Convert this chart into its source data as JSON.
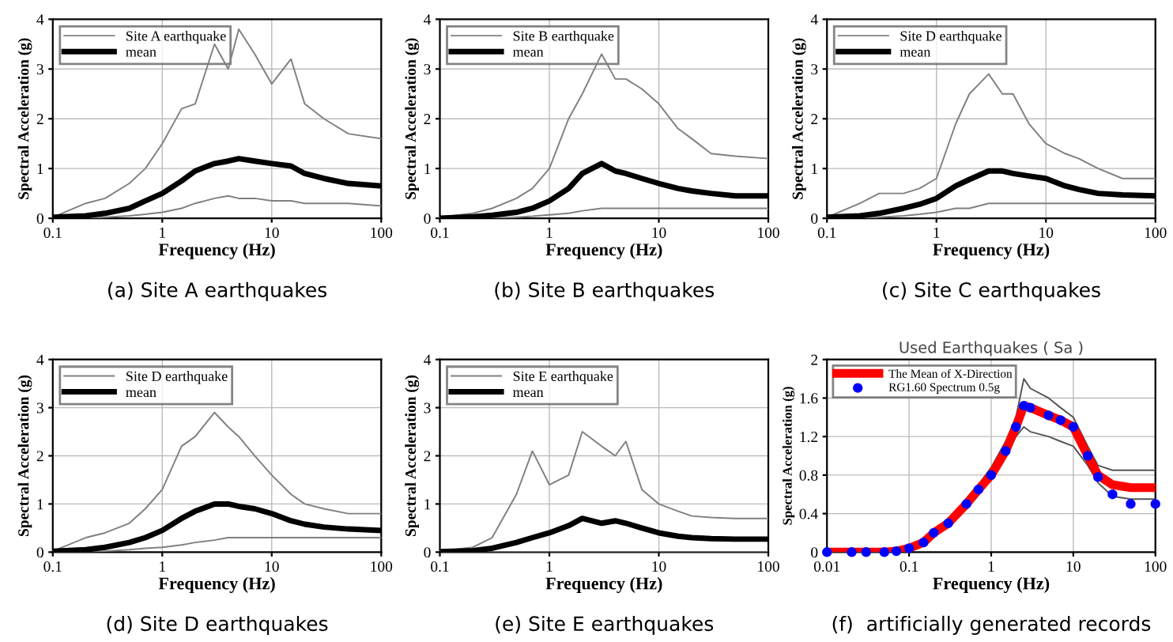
{
  "chart_data": [
    {
      "type": "line",
      "xlabel": "Frequency (Hz)",
      "ylabel": "Spectral Acceleration (g)",
      "annotations": [
        "(a) Site A earthquakes"
      ],
      "log": "x",
      "xlim": [
        0.1,
        100
      ],
      "xticks": [
        0.1,
        1,
        10,
        100
      ],
      "ylim": [
        0,
        4
      ],
      "yticks": [
        0,
        1,
        2,
        3,
        4
      ],
      "grid": true,
      "legend": "top left",
      "x": [
        0.1,
        0.2,
        0.3,
        0.5,
        0.7,
        1,
        1.5,
        2,
        3,
        4,
        5,
        7,
        10,
        15,
        20,
        30,
        50,
        100
      ],
      "series": [
        {
          "name": "Site A earthquake",
          "color": "#808080",
          "values": [
            0.02,
            0.3,
            0.4,
            0.7,
            1.0,
            1.5,
            2.2,
            2.3,
            3.5,
            3.0,
            3.8,
            3.3,
            2.7,
            3.2,
            2.3,
            2.0,
            1.7,
            1.6
          ]
        },
        {
          "color": "#808080",
          "values": [
            0,
            0,
            0.02,
            0.05,
            0.08,
            0.12,
            0.2,
            0.3,
            0.4,
            0.45,
            0.4,
            0.4,
            0.35,
            0.35,
            0.3,
            0.3,
            0.3,
            0.25
          ]
        },
        {
          "name": "mean",
          "color": "#000000",
          "values": [
            0.02,
            0.05,
            0.1,
            0.2,
            0.35,
            0.5,
            0.75,
            0.95,
            1.1,
            1.15,
            1.2,
            1.15,
            1.1,
            1.05,
            0.9,
            0.8,
            0.7,
            0.65
          ]
        }
      ]
    },
    {
      "type": "line",
      "xlabel": "Frequency (Hz)",
      "ylabel": "Spectral Acceleration (g)",
      "annotations": [
        "(b) Site B earthquakes"
      ],
      "log": "x",
      "xlim": [
        0.1,
        100
      ],
      "xticks": [
        0.1,
        1,
        10,
        100
      ],
      "ylim": [
        0,
        4
      ],
      "yticks": [
        0,
        1,
        2,
        3,
        4
      ],
      "grid": true,
      "legend": "top left",
      "x": [
        0.1,
        0.2,
        0.3,
        0.5,
        0.7,
        1,
        1.5,
        2,
        3,
        4,
        5,
        7,
        10,
        15,
        20,
        30,
        50,
        100
      ],
      "series": [
        {
          "name": "Site B earthquake",
          "color": "#808080",
          "values": [
            0.02,
            0.1,
            0.2,
            0.4,
            0.6,
            1.0,
            2.0,
            2.5,
            3.3,
            2.8,
            2.8,
            2.6,
            2.3,
            1.8,
            1.6,
            1.3,
            1.25,
            1.2
          ]
        },
        {
          "color": "#808080",
          "values": [
            0,
            0,
            0,
            0.02,
            0.04,
            0.07,
            0.1,
            0.15,
            0.2,
            0.2,
            0.2,
            0.2,
            0.2,
            0.2,
            0.2,
            0.2,
            0.2,
            0.2
          ]
        },
        {
          "name": "mean",
          "color": "#000000",
          "values": [
            0,
            0.03,
            0.06,
            0.12,
            0.2,
            0.35,
            0.6,
            0.9,
            1.1,
            0.95,
            0.9,
            0.8,
            0.7,
            0.6,
            0.55,
            0.5,
            0.45,
            0.45
          ]
        }
      ]
    },
    {
      "type": "line",
      "xlabel": "Frequency (Hz)",
      "ylabel": "Spectral Acceleration (g)",
      "annotations": [
        "(c) Site C earthquakes"
      ],
      "log": "x",
      "xlim": [
        0.1,
        100
      ],
      "xticks": [
        0.1,
        1,
        10,
        100
      ],
      "ylim": [
        0,
        4
      ],
      "yticks": [
        0,
        1,
        2,
        3,
        4
      ],
      "grid": true,
      "legend": "top left",
      "x": [
        0.1,
        0.2,
        0.3,
        0.5,
        0.7,
        1,
        1.5,
        2,
        3,
        4,
        5,
        7,
        10,
        15,
        20,
        30,
        50,
        100
      ],
      "series": [
        {
          "name": "Site D earthquake",
          "color": "#808080",
          "values": [
            0.02,
            0.3,
            0.5,
            0.5,
            0.6,
            0.8,
            1.9,
            2.5,
            2.9,
            2.5,
            2.5,
            1.9,
            1.5,
            1.3,
            1.2,
            1.0,
            0.8,
            0.8
          ]
        },
        {
          "color": "#808080",
          "values": [
            0,
            0,
            0.02,
            0.05,
            0.08,
            0.12,
            0.2,
            0.2,
            0.3,
            0.3,
            0.3,
            0.3,
            0.3,
            0.3,
            0.3,
            0.3,
            0.3,
            0.3
          ]
        },
        {
          "name": "mean",
          "color": "#000000",
          "values": [
            0.02,
            0.05,
            0.1,
            0.2,
            0.28,
            0.4,
            0.65,
            0.78,
            0.95,
            0.95,
            0.9,
            0.85,
            0.8,
            0.65,
            0.58,
            0.5,
            0.47,
            0.45
          ]
        }
      ]
    },
    {
      "type": "line",
      "xlabel": "Frequency (Hz)",
      "ylabel": "Spectral Acceleration (g)",
      "annotations": [
        "(d) Site D earthquakes"
      ],
      "log": "x",
      "xlim": [
        0.1,
        100
      ],
      "xticks": [
        0.1,
        1,
        10,
        100
      ],
      "ylim": [
        0,
        4
      ],
      "yticks": [
        0,
        1,
        2,
        3,
        4
      ],
      "grid": true,
      "legend": "top left",
      "x": [
        0.1,
        0.2,
        0.3,
        0.5,
        0.7,
        1,
        1.5,
        2,
        3,
        4,
        5,
        7,
        10,
        15,
        20,
        30,
        50,
        100
      ],
      "series": [
        {
          "name": "Site D earthquake",
          "color": "#808080",
          "values": [
            0.02,
            0.3,
            0.4,
            0.6,
            0.9,
            1.3,
            2.2,
            2.4,
            2.9,
            2.6,
            2.4,
            2.0,
            1.6,
            1.2,
            1.0,
            0.9,
            0.8,
            0.8
          ]
        },
        {
          "color": "#808080",
          "values": [
            0,
            0,
            0.02,
            0.05,
            0.08,
            0.1,
            0.15,
            0.2,
            0.25,
            0.3,
            0.3,
            0.3,
            0.3,
            0.3,
            0.3,
            0.3,
            0.3,
            0.3
          ]
        },
        {
          "name": "mean",
          "color": "#000000",
          "values": [
            0.02,
            0.05,
            0.1,
            0.2,
            0.3,
            0.45,
            0.7,
            0.85,
            1.0,
            1.0,
            0.95,
            0.9,
            0.8,
            0.65,
            0.58,
            0.52,
            0.48,
            0.45
          ]
        }
      ]
    },
    {
      "type": "line",
      "xlabel": "Frequency (Hz)",
      "ylabel": "Spectral Acceleration (g)",
      "annotations": [
        "(e) Site E earthquakes"
      ],
      "log": "x",
      "xlim": [
        0.1,
        100
      ],
      "xticks": [
        0.1,
        1,
        10,
        100
      ],
      "ylim": [
        0,
        4
      ],
      "yticks": [
        0,
        1,
        2,
        3,
        4
      ],
      "grid": true,
      "legend": "top left",
      "x": [
        0.1,
        0.2,
        0.3,
        0.5,
        0.7,
        1,
        1.5,
        2,
        3,
        4,
        5,
        7,
        10,
        15,
        20,
        30,
        50,
        100
      ],
      "series": [
        {
          "name": "Site E earthquake",
          "color": "#808080",
          "values": [
            0.02,
            0.1,
            0.3,
            1.2,
            2.1,
            1.4,
            1.6,
            2.5,
            2.2,
            2.0,
            2.3,
            1.3,
            1.0,
            0.85,
            0.75,
            0.72,
            0.7,
            0.7
          ]
        },
        {
          "color": "#808080",
          "values": [
            0,
            0,
            0,
            0,
            0,
            0,
            0,
            0,
            0,
            0,
            0,
            0,
            0,
            0,
            0,
            0,
            0,
            0
          ]
        },
        {
          "name": "mean",
          "color": "#000000",
          "values": [
            0.01,
            0.03,
            0.08,
            0.2,
            0.3,
            0.4,
            0.55,
            0.7,
            0.6,
            0.65,
            0.6,
            0.5,
            0.4,
            0.33,
            0.3,
            0.28,
            0.27,
            0.27
          ]
        }
      ]
    },
    {
      "type": "line",
      "title": "Used Earthquakes ( Sa )",
      "xlabel": "Frequency (Hz)",
      "ylabel": "Spectral Acceleration (g)",
      "annotations": [
        "(f)  artificially generated records"
      ],
      "log": "x",
      "xlim": [
        0.01,
        100
      ],
      "xticks": [
        0.01,
        0.1,
        1,
        10,
        100
      ],
      "ylim": [
        0,
        2
      ],
      "yticks": [
        0,
        {
          "value": 0.4,
          "label": "0.4"
        },
        {
          "value": 0.8,
          "label": "0.8"
        },
        {
          "value": 1.2,
          "label": "1.2"
        },
        {
          "value": 1.6,
          "label": "1.6"
        },
        2
      ],
      "grid": true,
      "legend": "top left",
      "x": [
        0.01,
        0.02,
        0.03,
        0.05,
        0.07,
        0.1,
        0.15,
        0.2,
        0.3,
        0.5,
        0.7,
        1,
        1.5,
        2,
        2.5,
        3,
        5,
        7,
        10,
        15,
        20,
        30,
        50,
        100
      ],
      "series": [
        {
          "color": "#555555",
          "values": [
            0,
            0,
            0,
            0,
            0.01,
            0.05,
            0.12,
            0.22,
            0.33,
            0.55,
            0.7,
            0.88,
            1.15,
            1.4,
            1.8,
            1.7,
            1.6,
            1.5,
            1.4,
            1.1,
            0.9,
            0.85,
            0.85,
            0.85
          ]
        },
        {
          "color": "#555555",
          "values": [
            0,
            0,
            0,
            0,
            0.01,
            0.03,
            0.08,
            0.18,
            0.28,
            0.45,
            0.6,
            0.75,
            1.0,
            1.2,
            1.3,
            1.25,
            1.2,
            1.15,
            1.1,
            0.9,
            0.72,
            0.58,
            0.55,
            0.55
          ]
        },
        {
          "name": "The Mean of X-Direction",
          "color": "#ff0000",
          "values": [
            0,
            0,
            0,
            0,
            0.01,
            0.04,
            0.1,
            0.2,
            0.3,
            0.5,
            0.65,
            0.8,
            1.05,
            1.3,
            1.52,
            1.5,
            1.42,
            1.37,
            1.3,
            1.0,
            0.8,
            0.7,
            0.67,
            0.67
          ]
        },
        {
          "name": "RG1.60 Spectrum 0.5g",
          "type": "scatter",
          "color": "#0000ff",
          "values": [
            0,
            0,
            0,
            0,
            0.01,
            0.04,
            0.1,
            0.2,
            0.3,
            0.5,
            0.65,
            0.8,
            1.05,
            1.3,
            1.52,
            1.5,
            1.42,
            1.37,
            1.3,
            1.0,
            0.78,
            0.6,
            0.5,
            0.5
          ]
        }
      ]
    }
  ]
}
